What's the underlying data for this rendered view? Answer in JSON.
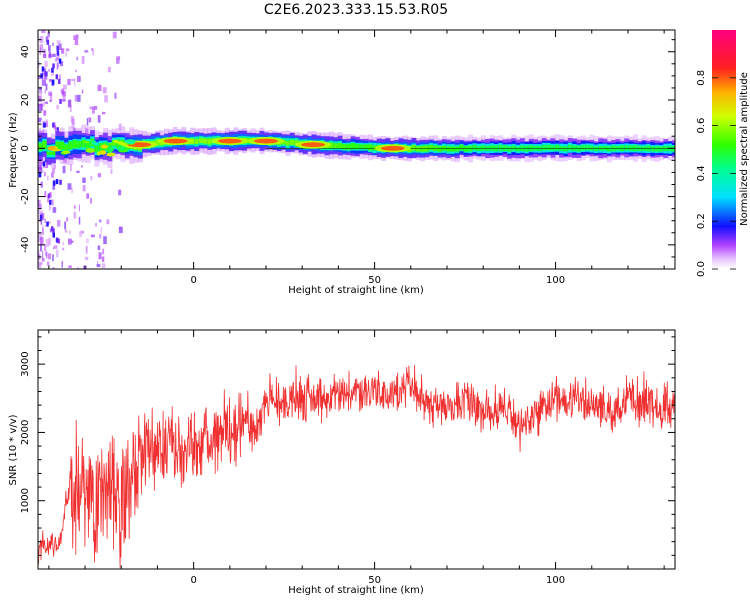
{
  "title": "C2E6.2023.333.15.53.R05",
  "chart_data": [
    {
      "type": "heatmap",
      "xlabel": "Height of straight line (km)",
      "ylabel": "Frequency (Hz)",
      "xlim": [
        -43,
        133
      ],
      "ylim": [
        -50,
        49
      ],
      "x_ticks": [
        0,
        50,
        100
      ],
      "y_ticks": [
        -40,
        -20,
        0,
        20,
        40
      ],
      "colorbar": {
        "label": "Normalized spectral amplitude",
        "range": [
          0.0,
          1.0
        ],
        "ticks": [
          "0.0",
          "0.2",
          "0.4",
          "0.6",
          "0.8"
        ]
      },
      "ridge": [
        {
          "x": -40,
          "freq": 0,
          "amp": 0.7
        },
        {
          "x": -30,
          "freq": 1,
          "amp": 0.6
        },
        {
          "x": -20,
          "freq": 1,
          "amp": 0.6
        },
        {
          "x": -15,
          "freq": 1.5,
          "amp": 0.9
        },
        {
          "x": -5,
          "freq": 3,
          "amp": 0.9
        },
        {
          "x": 10,
          "freq": 3,
          "amp": 0.9
        },
        {
          "x": 20,
          "freq": 3,
          "amp": 0.8
        },
        {
          "x": 33,
          "freq": 1.5,
          "amp": 0.9
        },
        {
          "x": 45,
          "freq": 0.5,
          "amp": 0.6
        },
        {
          "x": 55,
          "freq": 0,
          "amp": 0.9
        },
        {
          "x": 80,
          "freq": 0,
          "amp": 0.5
        },
        {
          "x": 110,
          "freq": 0,
          "amp": 0.5
        },
        {
          "x": 130,
          "freq": 0,
          "amp": 0.5
        }
      ]
    },
    {
      "type": "line",
      "xlabel": "Height of straight line (km)",
      "ylabel": "SNR (10 * v/v)",
      "xlim": [
        -43,
        133
      ],
      "ylim": [
        0,
        3500
      ],
      "x_ticks": [
        0,
        50,
        100
      ],
      "y_ticks": [
        1000,
        2000,
        3000
      ],
      "color": "#f03030",
      "series": [
        {
          "x": [
            -43,
            -40,
            -37,
            -34,
            -31,
            -28,
            -25,
            -22,
            -19,
            -16,
            -13,
            -10,
            -7,
            -4,
            -1,
            2,
            5,
            8,
            11,
            14,
            17,
            20,
            25,
            30,
            35,
            40,
            45,
            50,
            55,
            60,
            65,
            70,
            75,
            80,
            85,
            90,
            95,
            100,
            105,
            110,
            115,
            120,
            125,
            130,
            133
          ],
          "y": [
            300,
            350,
            400,
            1300,
            1200,
            1000,
            1100,
            1300,
            900,
            1500,
            1700,
            1800,
            1900,
            1700,
            1800,
            1800,
            1900,
            2000,
            2100,
            2200,
            2000,
            2500,
            2400,
            2500,
            2500,
            2550,
            2600,
            2600,
            2500,
            2700,
            2400,
            2400,
            2500,
            2300,
            2400,
            2100,
            2300,
            2500,
            2500,
            2400,
            2300,
            2500,
            2400,
            2400,
            2400
          ]
        }
      ]
    }
  ]
}
